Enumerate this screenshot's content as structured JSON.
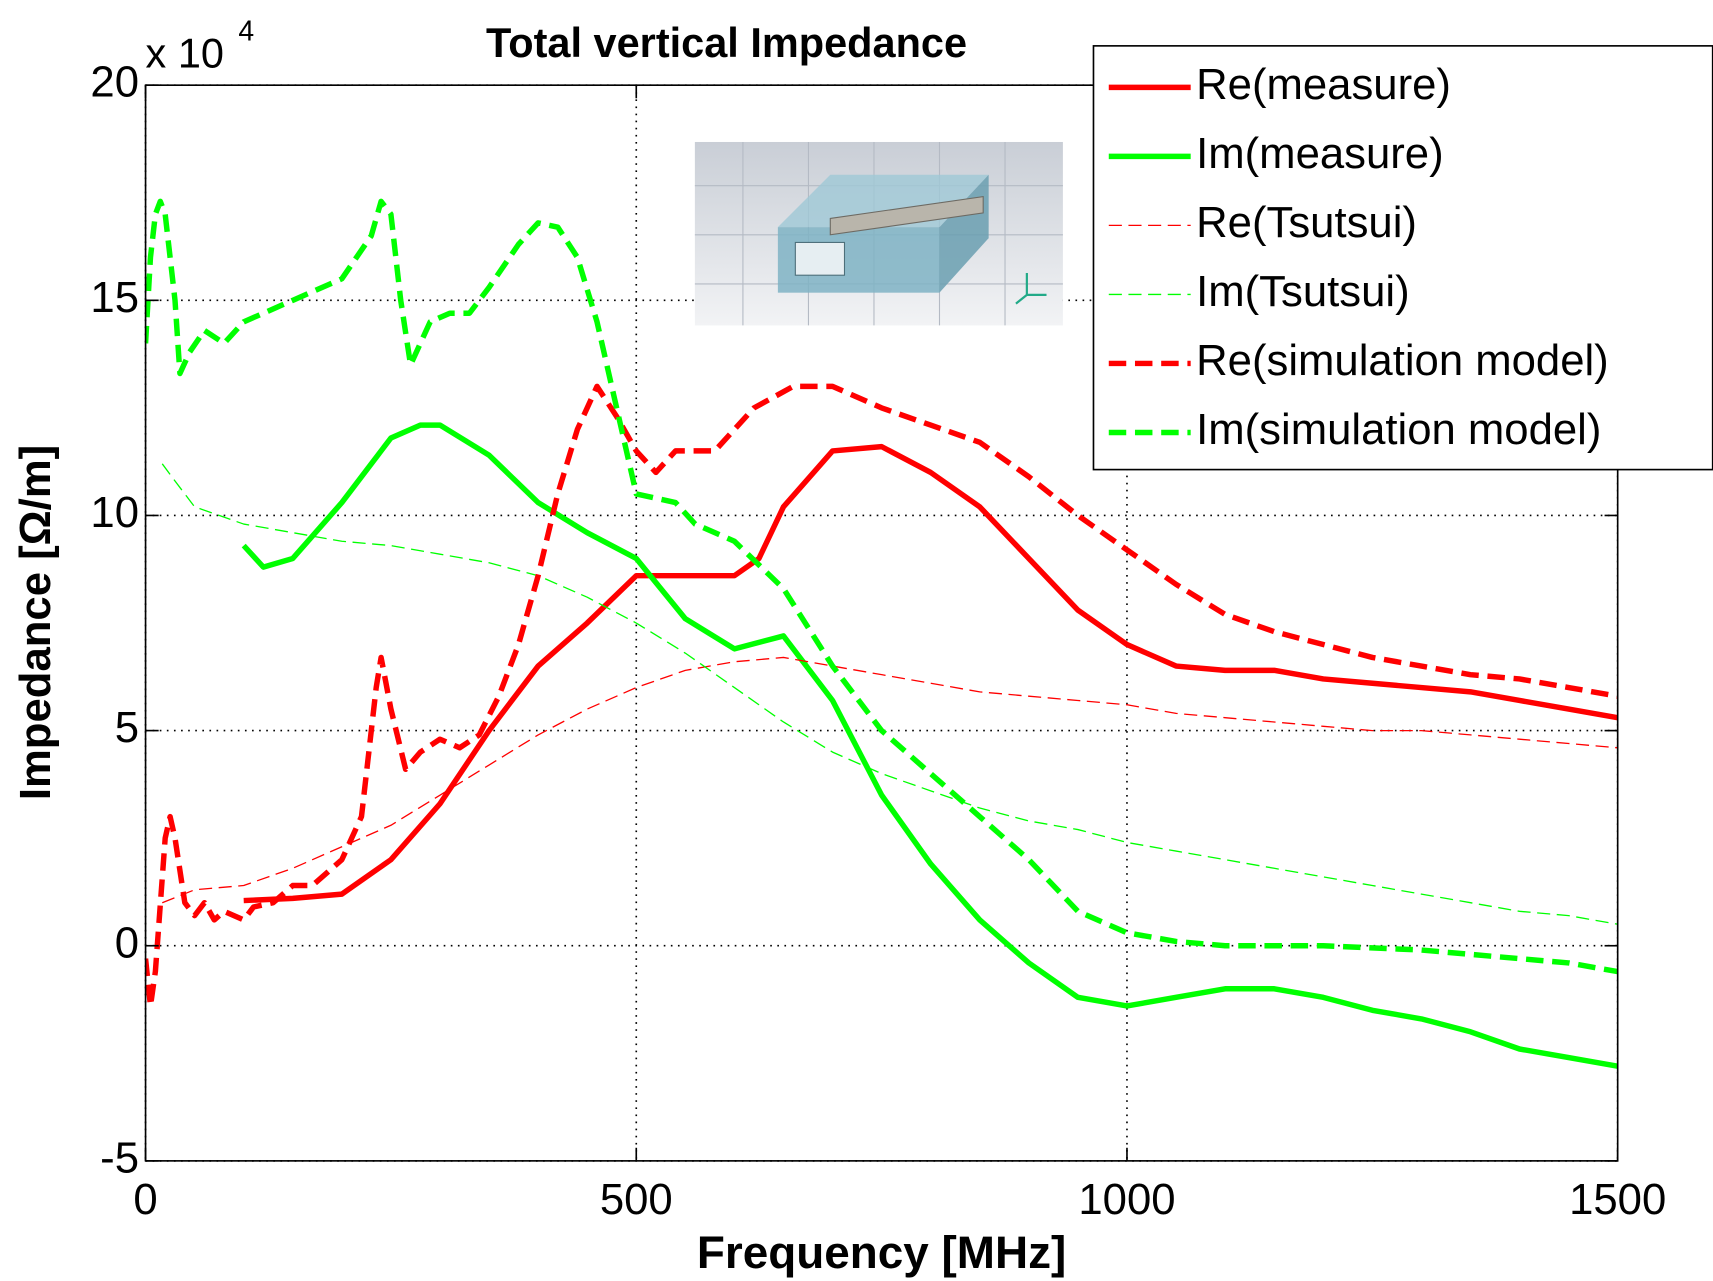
{
  "chart_data": {
    "type": "line",
    "title": "Total vertical Impedance",
    "xlabel": "Frequency [MHz]",
    "ylabel": "Impedance [Ω/m]",
    "multiplier_base": "x 10",
    "multiplier_exponent": "4",
    "xlim": [
      0,
      1500
    ],
    "xticks": [
      0,
      500,
      1000,
      1500
    ],
    "ylim": [
      -5,
      20
    ],
    "yticks": [
      -5,
      0,
      5,
      10,
      15,
      20
    ],
    "grid": true,
    "legend": "top-right",
    "series": [
      {
        "name": "Re(measure)",
        "color": "#ff0000",
        "linestyle": "solid",
        "linewidth": 5,
        "x": [
          100,
          150,
          200,
          250,
          300,
          350,
          400,
          450,
          500,
          550,
          600,
          625,
          650,
          700,
          750,
          800,
          850,
          900,
          950,
          1000,
          1050,
          1100,
          1150,
          1200,
          1250,
          1300,
          1350,
          1400,
          1450,
          1500
        ],
        "values": [
          1.05,
          1.1,
          1.2,
          2.0,
          3.3,
          5.0,
          6.5,
          7.5,
          8.6,
          8.6,
          8.6,
          9.0,
          10.2,
          11.5,
          11.6,
          11.0,
          10.2,
          9.0,
          7.8,
          7.0,
          6.5,
          6.4,
          6.4,
          6.2,
          6.1,
          6.0,
          5.9,
          5.7,
          5.5,
          5.3
        ]
      },
      {
        "name": "Im(measure)",
        "color": "#00ff00",
        "linestyle": "solid",
        "linewidth": 5,
        "x": [
          100,
          120,
          150,
          200,
          250,
          280,
          300,
          350,
          400,
          450,
          500,
          550,
          600,
          650,
          700,
          750,
          800,
          850,
          900,
          950,
          1000,
          1050,
          1100,
          1150,
          1200,
          1250,
          1300,
          1350,
          1400,
          1450,
          1500
        ],
        "values": [
          9.3,
          8.8,
          9.0,
          10.3,
          11.8,
          12.1,
          12.1,
          11.4,
          10.3,
          9.6,
          9.0,
          7.6,
          6.9,
          7.2,
          5.7,
          3.5,
          1.9,
          0.6,
          -0.4,
          -1.2,
          -1.4,
          -1.2,
          -1.0,
          -1.0,
          -1.2,
          -1.5,
          -1.7,
          -2.0,
          -2.4,
          -2.6,
          -2.8
        ]
      },
      {
        "name": "Re(Tsutsui)",
        "color": "#ff0000",
        "linestyle": "dashed",
        "linewidth": 1.2,
        "x": [
          17,
          50,
          100,
          150,
          200,
          250,
          300,
          350,
          400,
          450,
          500,
          550,
          600,
          650,
          700,
          750,
          800,
          850,
          900,
          950,
          1000,
          1050,
          1100,
          1150,
          1200,
          1250,
          1300,
          1350,
          1400,
          1450,
          1500
        ],
        "values": [
          1.0,
          1.3,
          1.4,
          1.8,
          2.3,
          2.8,
          3.5,
          4.2,
          4.9,
          5.5,
          6.0,
          6.4,
          6.6,
          6.7,
          6.5,
          6.3,
          6.1,
          5.9,
          5.8,
          5.7,
          5.6,
          5.4,
          5.3,
          5.2,
          5.1,
          5.0,
          5.0,
          4.9,
          4.8,
          4.7,
          4.6
        ]
      },
      {
        "name": "Im(Tsutsui)",
        "color": "#00ff00",
        "linestyle": "dashed",
        "linewidth": 1.2,
        "x": [
          17,
          30,
          50,
          100,
          150,
          200,
          250,
          300,
          350,
          400,
          450,
          500,
          550,
          600,
          650,
          700,
          750,
          800,
          850,
          900,
          950,
          1000,
          1050,
          1100,
          1150,
          1200,
          1250,
          1300,
          1350,
          1400,
          1450,
          1500
        ],
        "values": [
          11.2,
          10.8,
          10.2,
          9.8,
          9.6,
          9.4,
          9.3,
          9.1,
          8.9,
          8.6,
          8.1,
          7.5,
          6.8,
          6.0,
          5.2,
          4.5,
          4.0,
          3.6,
          3.2,
          2.9,
          2.7,
          2.4,
          2.2,
          2.0,
          1.8,
          1.6,
          1.4,
          1.2,
          1.0,
          0.8,
          0.7,
          0.5
        ]
      },
      {
        "name": "Re(simulation model)",
        "color": "#ff0000",
        "linestyle": "dashed",
        "linewidth": 5,
        "x": [
          0,
          5,
          10,
          20,
          25,
          30,
          40,
          50,
          60,
          70,
          80,
          100,
          110,
          130,
          150,
          170,
          200,
          220,
          235,
          240,
          250,
          265,
          280,
          300,
          320,
          340,
          360,
          380,
          400,
          420,
          440,
          460,
          480,
          500,
          520,
          540,
          580,
          620,
          660,
          700,
          750,
          800,
          850,
          900,
          950,
          1000,
          1050,
          1100,
          1150,
          1200,
          1250,
          1300,
          1350,
          1400,
          1450,
          1500
        ],
        "values": [
          -0.3,
          -1.4,
          -0.6,
          2.5,
          3.0,
          2.5,
          1.0,
          0.7,
          1.0,
          0.6,
          0.8,
          0.6,
          0.9,
          1.0,
          1.4,
          1.4,
          2.0,
          3.0,
          6.0,
          6.7,
          5.5,
          4.1,
          4.5,
          4.8,
          4.6,
          4.9,
          5.8,
          7.0,
          8.6,
          10.5,
          12.0,
          13.0,
          12.3,
          11.5,
          11.0,
          11.5,
          11.5,
          12.5,
          13.0,
          13.0,
          12.5,
          12.1,
          11.7,
          10.9,
          10.0,
          9.2,
          8.4,
          7.7,
          7.3,
          7.0,
          6.7,
          6.5,
          6.3,
          6.2,
          6.0,
          5.8
        ]
      },
      {
        "name": "Im(simulation model)",
        "color": "#00ff00",
        "linestyle": "dashed",
        "linewidth": 5,
        "x": [
          0,
          5,
          10,
          15,
          20,
          30,
          35,
          45,
          60,
          80,
          100,
          150,
          200,
          230,
          240,
          250,
          260,
          270,
          290,
          310,
          330,
          350,
          380,
          400,
          420,
          440,
          460,
          480,
          500,
          520,
          540,
          560,
          600,
          650,
          700,
          750,
          800,
          850,
          900,
          950,
          1000,
          1050,
          1100,
          1200,
          1300,
          1400,
          1450,
          1500
        ],
        "values": [
          14.0,
          16.0,
          17.0,
          17.3,
          17.0,
          15.0,
          13.3,
          13.8,
          14.3,
          14.0,
          14.5,
          15.0,
          15.5,
          16.5,
          17.3,
          17.0,
          15.0,
          13.5,
          14.5,
          14.7,
          14.7,
          15.3,
          16.3,
          16.8,
          16.7,
          16.0,
          14.5,
          12.5,
          10.5,
          10.4,
          10.3,
          9.8,
          9.4,
          8.3,
          6.5,
          5.0,
          4.0,
          3.0,
          2.0,
          0.8,
          0.3,
          0.1,
          0.0,
          0.0,
          -0.1,
          -0.3,
          -0.4,
          -0.6
        ]
      }
    ]
  }
}
